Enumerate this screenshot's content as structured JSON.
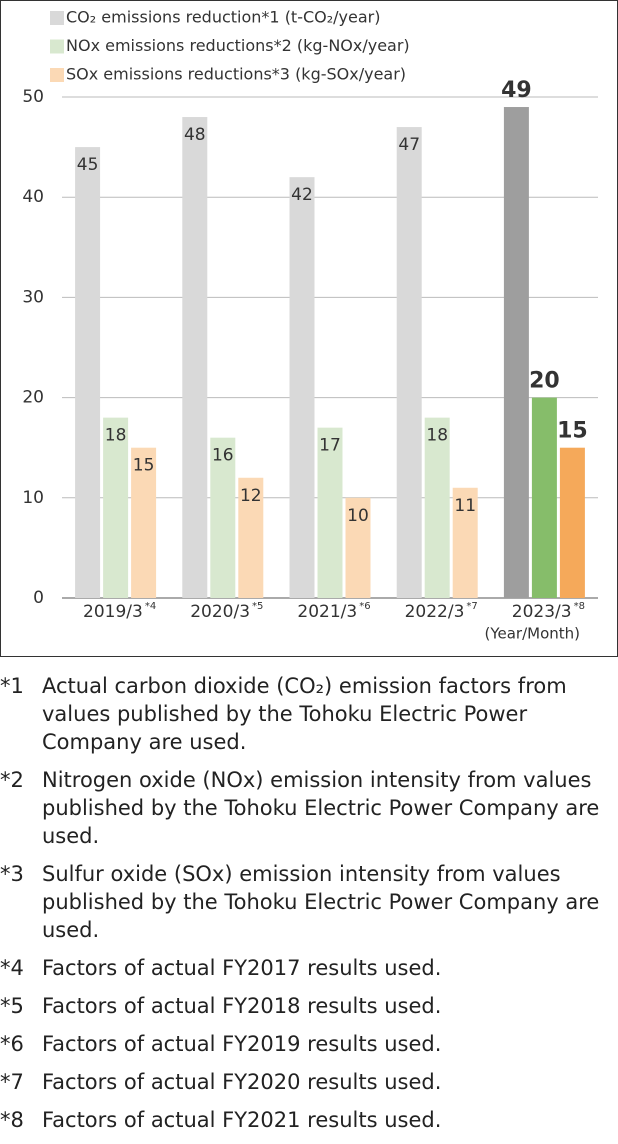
{
  "chart_data": {
    "type": "bar",
    "categories": [
      "2019/3",
      "2020/3",
      "2021/3",
      "2022/3",
      "2023/3"
    ],
    "category_notes": [
      "*4",
      "*5",
      "*6",
      "*7",
      "*8"
    ],
    "x_label": "(Year/Month)",
    "series": [
      {
        "name": "CO₂ emissions reduction*1 (t-CO₂/year)",
        "color": "#d9d9d9",
        "highlight_color": "#9e9e9e",
        "values": [
          45,
          48,
          42,
          47,
          49
        ]
      },
      {
        "name": "NOx emissions reductions*2 (kg-NOx/year)",
        "color": "#d8e8cf",
        "highlight_color": "#86bd6a",
        "values": [
          18,
          16,
          17,
          18,
          20
        ]
      },
      {
        "name": "SOx emissions reductions*3 (kg-SOx/year)",
        "color": "#fbd9b5",
        "highlight_color": "#f5a95a",
        "values": [
          15,
          12,
          10,
          11,
          15
        ]
      }
    ],
    "highlight_index": 4,
    "ylim": [
      0,
      50
    ],
    "yticks": [
      0,
      10,
      20,
      30,
      40,
      50
    ],
    "grid": true,
    "legend": "top-left"
  },
  "footnotes": [
    {
      "mark": "*1",
      "text": "Actual carbon dioxide (CO₂) emission factors from values published by the Tohoku Electric Power Company are used."
    },
    {
      "mark": "*2",
      "text": "Nitrogen oxide (NOx) emission intensity from values published by the Tohoku Electric Power Company are used."
    },
    {
      "mark": "*3",
      "text": "Sulfur oxide (SOx) emission intensity from values published by the Tohoku Electric Power Company are used."
    },
    {
      "mark": "*4",
      "text": "Factors of actual FY2017 results used."
    },
    {
      "mark": "*5",
      "text": "Factors of actual FY2018 results used."
    },
    {
      "mark": "*6",
      "text": "Factors of actual FY2019 results used."
    },
    {
      "mark": "*7",
      "text": "Factors of actual FY2020 results used."
    },
    {
      "mark": "*8",
      "text": "Factors of actual FY2021 results used."
    }
  ]
}
